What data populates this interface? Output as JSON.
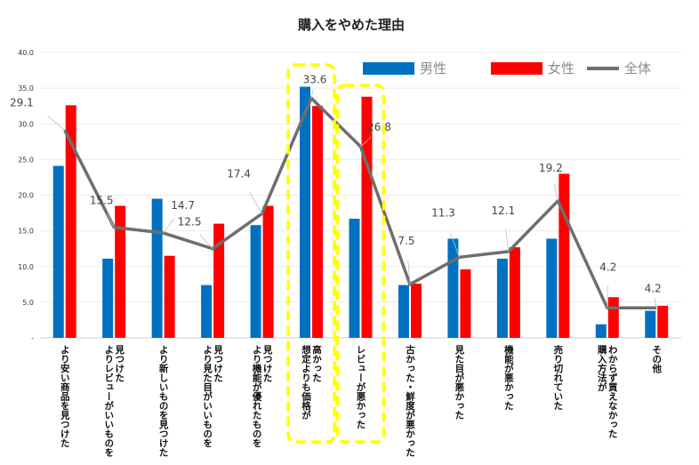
{
  "chart_data": {
    "type": "bar",
    "title": "購入をやめた理由",
    "ylim": [
      0,
      40
    ],
    "yticks": [
      "-",
      "5.0",
      "10.0",
      "15.0",
      "20.0",
      "25.0",
      "30.0",
      "35.0",
      "40.0"
    ],
    "grid": true,
    "legend_position": "top-right",
    "categories": [
      [
        "より安い商品を見つけた"
      ],
      [
        "よりレビューがいいものを",
        "見つけた"
      ],
      [
        "より新しいものを見つけた"
      ],
      [
        "より見た目がいいものを",
        "見つけた"
      ],
      [
        "より機能が優れたものを",
        "見つけた"
      ],
      [
        "想定よりも価格が",
        "高かった"
      ],
      [
        "レビューが悪かった"
      ],
      [
        "古かった・鮮度が悪かった"
      ],
      [
        "見た目が悪かった"
      ],
      [
        "機能が悪かった"
      ],
      [
        "売り切れていた"
      ],
      [
        "購入方法が",
        "わからず買えなかった"
      ],
      [
        "その他"
      ]
    ],
    "series": [
      {
        "name": "男性",
        "type": "bar",
        "color": "#0070C0",
        "values": [
          24.1,
          11.1,
          19.5,
          7.4,
          15.8,
          35.2,
          16.7,
          7.4,
          13.9,
          11.1,
          13.9,
          1.9,
          3.8
        ]
      },
      {
        "name": "女性",
        "type": "bar",
        "color": "#FF0000",
        "values": [
          32.6,
          18.5,
          11.5,
          16.0,
          18.5,
          32.5,
          33.8,
          7.6,
          9.6,
          12.7,
          23.0,
          5.7,
          4.5
        ]
      },
      {
        "name": "全体",
        "type": "line",
        "color": "#6e6e6e",
        "values": [
          29.1,
          15.5,
          14.7,
          12.5,
          17.4,
          33.6,
          26.8,
          7.5,
          11.3,
          12.1,
          19.2,
          4.2,
          4.2
        ],
        "labels": [
          "29.1",
          "15.5",
          "14.7",
          "12.5",
          "17.4",
          "33.6",
          "26.8",
          "7.5",
          "11.3",
          "12.1",
          "19.2",
          "4.2",
          "4.2"
        ]
      }
    ],
    "highlighted_categories": [
      5,
      6
    ],
    "highlight_color": "#FFFF00"
  }
}
